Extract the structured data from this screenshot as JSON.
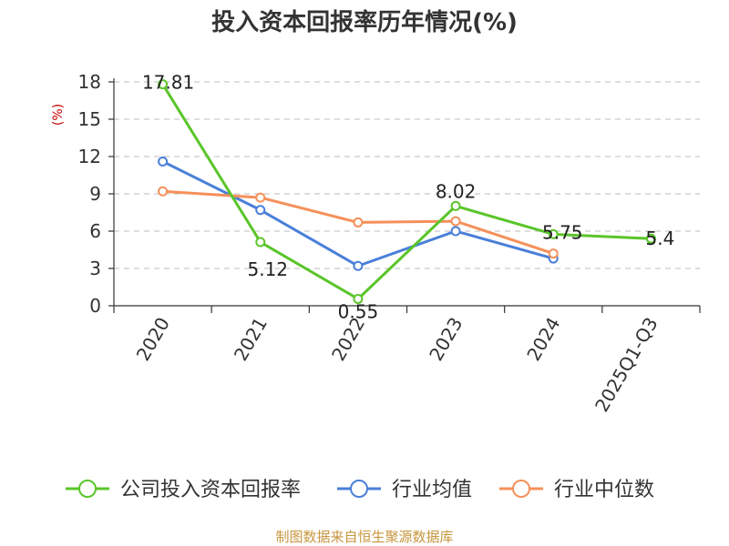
{
  "chart_data": {
    "type": "line",
    "title": "投入资本回报率历年情况(%)",
    "ylabel": "(%)",
    "ylim": [
      0,
      18
    ],
    "yticks": [
      0,
      3,
      6,
      9,
      12,
      15,
      18
    ],
    "categories": [
      "2020",
      "2021",
      "2022",
      "2023",
      "2024",
      "2025Q1-Q3"
    ],
    "grid": "horizontal-dashed",
    "legend_position": "bottom",
    "series": [
      {
        "name": "公司投入资本回报率",
        "color": "#5ac52a",
        "values": [
          17.81,
          5.12,
          0.55,
          8.02,
          5.75,
          5.4
        ],
        "labels": [
          "17.81",
          "5.12",
          "0.55",
          "8.02",
          "5.75",
          "5.4"
        ]
      },
      {
        "name": "行业均值",
        "color": "#4a7fd9",
        "values": [
          11.6,
          7.7,
          3.2,
          6.0,
          3.8,
          null
        ]
      },
      {
        "name": "行业中位数",
        "color": "#f5905a",
        "values": [
          9.2,
          8.7,
          6.7,
          6.8,
          4.2,
          null
        ]
      }
    ]
  },
  "source": "制图数据来自恒生聚源数据库"
}
